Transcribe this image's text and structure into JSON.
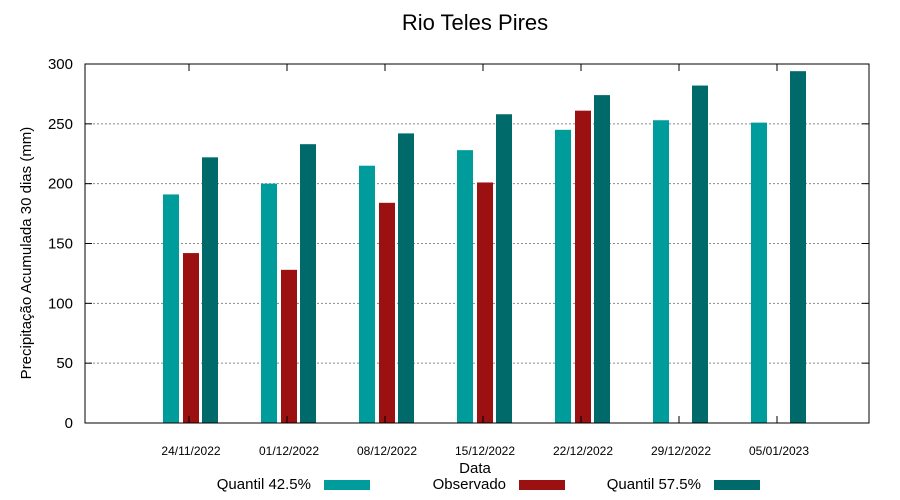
{
  "chart_data": {
    "type": "bar",
    "title": "Rio Teles Pires",
    "xlabel": "Data",
    "ylabel": "Precipitação Acumulada 30 dias (mm)",
    "ylim": [
      0,
      300
    ],
    "yticks": [
      0,
      50,
      100,
      150,
      200,
      250,
      300
    ],
    "grid": true,
    "legend_position": "bottom",
    "categories": [
      "24/11/2022",
      "01/12/2022",
      "08/12/2022",
      "15/12/2022",
      "22/12/2022",
      "29/12/2022",
      "05/01/2023"
    ],
    "series": [
      {
        "name": "Quantil 42.5%",
        "color": "#009b9b",
        "values": [
          191,
          200,
          215,
          228,
          245,
          253,
          251
        ]
      },
      {
        "name": "Observado",
        "color": "#9b1010",
        "values": [
          142,
          128,
          184,
          201,
          261,
          null,
          null
        ]
      },
      {
        "name": "Quantil 57.5%",
        "color": "#006a6a",
        "values": [
          222,
          233,
          242,
          258,
          274,
          282,
          294
        ]
      }
    ]
  }
}
